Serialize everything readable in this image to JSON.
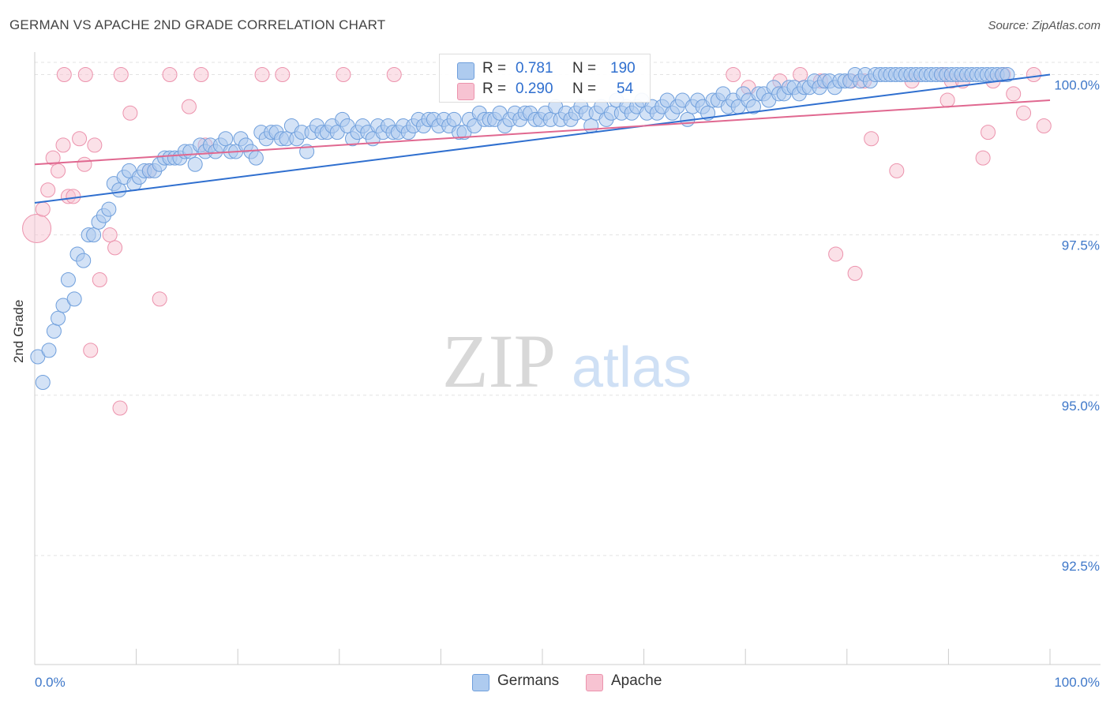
{
  "title": "GERMAN VS APACHE 2ND GRADE CORRELATION CHART",
  "source": "Source: ZipAtlas.com",
  "watermark": {
    "zip": "ZIP",
    "atlas": "atlas"
  },
  "stats": [
    {
      "r_label": "R =",
      "r_value": "0.781",
      "n_label": "N =",
      "n_value": "190",
      "fill": "#aecbef",
      "stroke": "#6f9fdc"
    },
    {
      "r_label": "R =",
      "r_value": "0.290",
      "n_label": "N =",
      "n_value": "54",
      "fill": "#f7c3d2",
      "stroke": "#ec93ad"
    }
  ],
  "legend": [
    {
      "label": "Germans",
      "fill": "#aecbef",
      "stroke": "#6f9fdc"
    },
    {
      "label": "Apache",
      "fill": "#f7c3d2",
      "stroke": "#ec93ad"
    }
  ],
  "colors": {
    "blue_line": "#2f6fcf",
    "pink_line": "#e06890",
    "tick_text": "#3f78c9",
    "grid": "#e3e3e3"
  },
  "chart_data": {
    "type": "scatter",
    "title": "GERMAN VS APACHE 2ND GRADE CORRELATION CHART",
    "xlabel": "",
    "ylabel": "2nd Grade",
    "xlim": [
      0,
      100
    ],
    "ylim": [
      90.8,
      100.4
    ],
    "x_tick_labels": [
      "0.0%",
      "100.0%"
    ],
    "y_ticks": [
      100.0,
      97.5,
      95.0,
      92.5
    ],
    "y_tick_labels": [
      "100.0%",
      "97.5%",
      "95.0%",
      "92.5%"
    ],
    "grid": true,
    "legend_position": "bottom-center",
    "series": [
      {
        "name": "Germans",
        "trendline": [
          [
            0,
            98.0
          ],
          [
            100,
            100.0
          ]
        ],
        "points": [
          [
            0.3,
            95.6
          ],
          [
            0.8,
            95.2
          ],
          [
            1.4,
            95.7
          ],
          [
            1.9,
            96.0
          ],
          [
            2.3,
            96.2
          ],
          [
            2.8,
            96.4
          ],
          [
            3.3,
            96.8
          ],
          [
            3.9,
            96.5
          ],
          [
            4.2,
            97.2
          ],
          [
            4.8,
            97.1
          ],
          [
            5.3,
            97.5
          ],
          [
            5.8,
            97.5
          ],
          [
            6.3,
            97.7
          ],
          [
            6.8,
            97.8
          ],
          [
            7.3,
            97.9
          ],
          [
            7.8,
            98.3
          ],
          [
            8.3,
            98.2
          ],
          [
            8.8,
            98.4
          ],
          [
            9.3,
            98.5
          ],
          [
            9.8,
            98.3
          ],
          [
            10.3,
            98.4
          ],
          [
            10.8,
            98.5
          ],
          [
            11.3,
            98.5
          ],
          [
            11.8,
            98.5
          ],
          [
            12.3,
            98.6
          ],
          [
            12.8,
            98.7
          ],
          [
            13.3,
            98.7
          ],
          [
            13.8,
            98.7
          ],
          [
            14.3,
            98.7
          ],
          [
            14.8,
            98.8
          ],
          [
            15.3,
            98.8
          ],
          [
            15.8,
            98.6
          ],
          [
            16.3,
            98.9
          ],
          [
            16.8,
            98.8
          ],
          [
            17.3,
            98.9
          ],
          [
            17.8,
            98.8
          ],
          [
            18.3,
            98.9
          ],
          [
            18.8,
            99.0
          ],
          [
            19.3,
            98.8
          ],
          [
            19.8,
            98.8
          ],
          [
            20.3,
            99.0
          ],
          [
            20.8,
            98.9
          ],
          [
            21.3,
            98.8
          ],
          [
            21.8,
            98.7
          ],
          [
            22.3,
            99.1
          ],
          [
            22.8,
            99.0
          ],
          [
            23.3,
            99.1
          ],
          [
            23.8,
            99.1
          ],
          [
            24.3,
            99.0
          ],
          [
            24.8,
            99.0
          ],
          [
            25.3,
            99.2
          ],
          [
            25.8,
            99.0
          ],
          [
            26.3,
            99.1
          ],
          [
            26.8,
            98.8
          ],
          [
            27.3,
            99.1
          ],
          [
            27.8,
            99.2
          ],
          [
            28.3,
            99.1
          ],
          [
            28.8,
            99.1
          ],
          [
            29.3,
            99.2
          ],
          [
            29.8,
            99.1
          ],
          [
            30.3,
            99.3
          ],
          [
            30.8,
            99.2
          ],
          [
            31.3,
            99.0
          ],
          [
            31.8,
            99.1
          ],
          [
            32.3,
            99.2
          ],
          [
            32.8,
            99.1
          ],
          [
            33.3,
            99.0
          ],
          [
            33.8,
            99.2
          ],
          [
            34.3,
            99.1
          ],
          [
            34.8,
            99.2
          ],
          [
            35.3,
            99.1
          ],
          [
            35.8,
            99.1
          ],
          [
            36.3,
            99.2
          ],
          [
            36.8,
            99.1
          ],
          [
            37.3,
            99.2
          ],
          [
            37.8,
            99.3
          ],
          [
            38.3,
            99.2
          ],
          [
            38.8,
            99.3
          ],
          [
            39.3,
            99.3
          ],
          [
            39.8,
            99.2
          ],
          [
            40.3,
            99.3
          ],
          [
            40.8,
            99.2
          ],
          [
            41.3,
            99.3
          ],
          [
            41.8,
            99.1
          ],
          [
            42.3,
            99.1
          ],
          [
            42.8,
            99.3
          ],
          [
            43.3,
            99.2
          ],
          [
            43.8,
            99.4
          ],
          [
            44.3,
            99.3
          ],
          [
            44.8,
            99.3
          ],
          [
            45.3,
            99.3
          ],
          [
            45.8,
            99.4
          ],
          [
            46.3,
            99.2
          ],
          [
            46.8,
            99.3
          ],
          [
            47.3,
            99.4
          ],
          [
            47.8,
            99.3
          ],
          [
            48.3,
            99.4
          ],
          [
            48.8,
            99.4
          ],
          [
            49.3,
            99.3
          ],
          [
            49.8,
            99.3
          ],
          [
            50.3,
            99.4
          ],
          [
            50.8,
            99.3
          ],
          [
            51.3,
            99.5
          ],
          [
            51.8,
            99.3
          ],
          [
            52.3,
            99.4
          ],
          [
            52.8,
            99.3
          ],
          [
            53.3,
            99.4
          ],
          [
            53.8,
            99.5
          ],
          [
            54.3,
            99.4
          ],
          [
            54.8,
            99.2
          ],
          [
            55.3,
            99.4
          ],
          [
            55.8,
            99.5
          ],
          [
            56.3,
            99.3
          ],
          [
            56.8,
            99.4
          ],
          [
            57.3,
            99.6
          ],
          [
            57.8,
            99.4
          ],
          [
            58.3,
            99.5
          ],
          [
            58.8,
            99.4
          ],
          [
            59.3,
            99.5
          ],
          [
            59.8,
            99.6
          ],
          [
            60.3,
            99.4
          ],
          [
            60.8,
            99.5
          ],
          [
            61.3,
            99.4
          ],
          [
            61.8,
            99.5
          ],
          [
            62.3,
            99.6
          ],
          [
            62.8,
            99.4
          ],
          [
            63.3,
            99.5
          ],
          [
            63.8,
            99.6
          ],
          [
            64.3,
            99.3
          ],
          [
            64.8,
            99.5
          ],
          [
            65.3,
            99.6
          ],
          [
            65.8,
            99.5
          ],
          [
            66.3,
            99.4
          ],
          [
            66.8,
            99.6
          ],
          [
            67.3,
            99.6
          ],
          [
            67.8,
            99.7
          ],
          [
            68.3,
            99.5
          ],
          [
            68.8,
            99.6
          ],
          [
            69.3,
            99.5
          ],
          [
            69.8,
            99.7
          ],
          [
            70.3,
            99.6
          ],
          [
            70.8,
            99.5
          ],
          [
            71.3,
            99.7
          ],
          [
            71.8,
            99.7
          ],
          [
            72.3,
            99.6
          ],
          [
            72.8,
            99.8
          ],
          [
            73.3,
            99.7
          ],
          [
            73.8,
            99.7
          ],
          [
            74.3,
            99.8
          ],
          [
            74.8,
            99.8
          ],
          [
            75.3,
            99.7
          ],
          [
            75.8,
            99.8
          ],
          [
            76.3,
            99.8
          ],
          [
            76.8,
            99.9
          ],
          [
            77.3,
            99.8
          ],
          [
            77.8,
            99.9
          ],
          [
            78.3,
            99.9
          ],
          [
            78.8,
            99.8
          ],
          [
            79.3,
            99.9
          ],
          [
            79.8,
            99.9
          ],
          [
            80.3,
            99.9
          ],
          [
            80.8,
            100.0
          ],
          [
            81.3,
            99.9
          ],
          [
            81.8,
            100.0
          ],
          [
            82.3,
            99.9
          ],
          [
            82.8,
            100.0
          ],
          [
            83.3,
            100.0
          ],
          [
            83.8,
            100.0
          ],
          [
            84.3,
            100.0
          ],
          [
            84.8,
            100.0
          ],
          [
            85.3,
            100.0
          ],
          [
            85.8,
            100.0
          ],
          [
            86.3,
            100.0
          ],
          [
            86.8,
            100.0
          ],
          [
            87.3,
            100.0
          ],
          [
            87.8,
            100.0
          ],
          [
            88.3,
            100.0
          ],
          [
            88.8,
            100.0
          ],
          [
            89.3,
            100.0
          ],
          [
            89.8,
            100.0
          ],
          [
            90.3,
            100.0
          ],
          [
            90.8,
            100.0
          ],
          [
            91.3,
            100.0
          ],
          [
            91.8,
            100.0
          ],
          [
            92.3,
            100.0
          ],
          [
            92.8,
            100.0
          ],
          [
            93.3,
            100.0
          ],
          [
            93.8,
            100.0
          ],
          [
            94.3,
            100.0
          ],
          [
            94.8,
            100.0
          ],
          [
            95.3,
            100.0
          ],
          [
            95.8,
            100.0
          ]
        ]
      },
      {
        "name": "Apache",
        "trendline": [
          [
            0,
            98.6
          ],
          [
            100,
            99.6
          ]
        ],
        "points": [
          [
            0.2,
            97.6
          ],
          [
            0.8,
            97.9
          ],
          [
            1.3,
            98.2
          ],
          [
            1.8,
            98.7
          ],
          [
            2.3,
            98.5
          ],
          [
            2.8,
            98.9
          ],
          [
            3.3,
            98.1
          ],
          [
            3.8,
            98.1
          ],
          [
            4.4,
            99.0
          ],
          [
            4.9,
            98.6
          ],
          [
            5.5,
            95.7
          ],
          [
            5.9,
            98.9
          ],
          [
            6.4,
            96.8
          ],
          [
            7.4,
            97.5
          ],
          [
            7.9,
            97.3
          ],
          [
            8.4,
            94.8
          ],
          [
            9.4,
            99.4
          ],
          [
            11.3,
            98.5
          ],
          [
            12.3,
            96.5
          ],
          [
            15.2,
            99.5
          ],
          [
            16.8,
            98.9
          ],
          [
            22.4,
            100.0
          ],
          [
            24.4,
            100.0
          ],
          [
            30.4,
            100.0
          ],
          [
            35.4,
            100.0
          ],
          [
            68.8,
            100.0
          ],
          [
            70.3,
            99.8
          ],
          [
            73.4,
            99.9
          ],
          [
            75.4,
            100.0
          ],
          [
            77.4,
            99.9
          ],
          [
            78.9,
            97.2
          ],
          [
            80.4,
            99.9
          ],
          [
            80.8,
            96.9
          ],
          [
            81.7,
            99.9
          ],
          [
            82.4,
            99.0
          ],
          [
            84.9,
            98.5
          ],
          [
            86.4,
            99.9
          ],
          [
            89.4,
            100.0
          ],
          [
            89.9,
            99.6
          ],
          [
            90.3,
            99.9
          ],
          [
            91.4,
            99.9
          ],
          [
            93.4,
            98.7
          ],
          [
            93.9,
            99.1
          ],
          [
            94.4,
            99.9
          ],
          [
            95.4,
            100.0
          ],
          [
            96.4,
            99.7
          ],
          [
            97.4,
            99.4
          ],
          [
            98.4,
            100.0
          ],
          [
            99.4,
            99.2
          ],
          [
            2.9,
            100.0
          ],
          [
            5.0,
            100.0
          ],
          [
            8.5,
            100.0
          ],
          [
            13.3,
            100.0
          ],
          [
            16.4,
            100.0
          ]
        ]
      }
    ]
  }
}
